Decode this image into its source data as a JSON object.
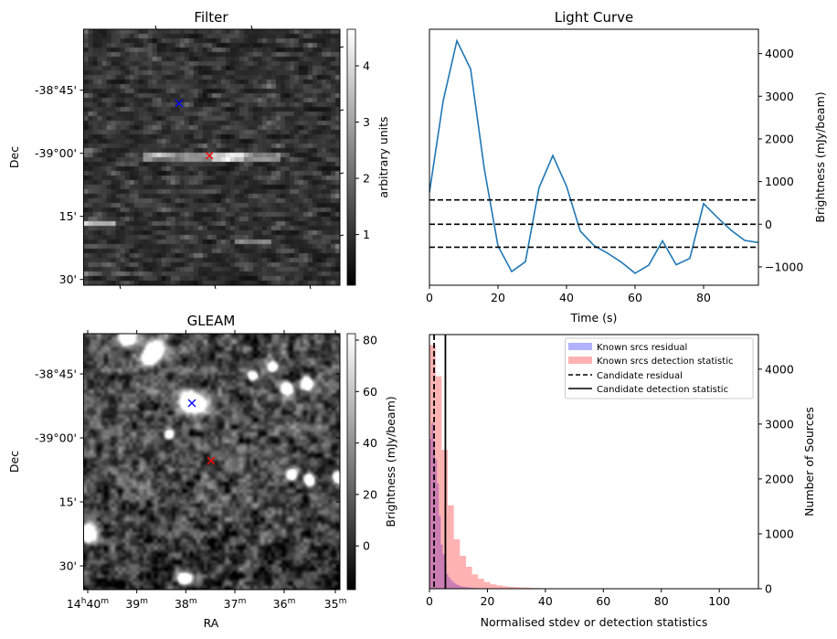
{
  "chart_data": [
    {
      "type": "heatmap",
      "title": "Filter",
      "ylabel": "Dec",
      "y_tick_labels": [
        "-38°45'",
        "-39°00'",
        "15'",
        "30'"
      ],
      "colorbar": {
        "label": "arbitrary units",
        "range": [
          0.1,
          4.65
        ],
        "tick_values": [
          1,
          2,
          3,
          4
        ],
        "tick_labels": [
          "1",
          "2",
          "3",
          "4"
        ],
        "colormap": "gray"
      },
      "markers": [
        {
          "name": "known source",
          "symbol": "x",
          "color": "#0000ff"
        },
        {
          "name": "candidate",
          "symbol": "x",
          "color": "#ff0000"
        }
      ]
    },
    {
      "type": "line",
      "title": "Light Curve",
      "xlabel": "Time (s)",
      "ylabel": "Brightness (mJy/beam)",
      "xlim": [
        0,
        96
      ],
      "ylim": [
        -1430,
        4570
      ],
      "x_ticks": [
        0,
        20,
        40,
        60,
        80
      ],
      "x_tick_labels": [
        "0",
        "20",
        "40",
        "60",
        "80"
      ],
      "y_ticks": [
        -1000,
        0,
        1000,
        2000,
        3000,
        4000
      ],
      "y_tick_labels": [
        "−1000",
        "0",
        "1000",
        "2000",
        "3000",
        "4000"
      ],
      "series": [
        {
          "name": "light curve",
          "color": "#1f77b4",
          "x": [
            0,
            4,
            8,
            12,
            16,
            20,
            24,
            28,
            32,
            36,
            40,
            44,
            48,
            52,
            56,
            60,
            64,
            68,
            72,
            76,
            80,
            84,
            88,
            92,
            96
          ],
          "values": [
            750,
            2890,
            4300,
            3640,
            1300,
            -510,
            -1110,
            -880,
            860,
            1610,
            890,
            -160,
            -500,
            -680,
            -890,
            -1150,
            -960,
            -390,
            -950,
            -800,
            480,
            160,
            -140,
            -380,
            -430
          ]
        }
      ],
      "hlines": [
        570,
        0,
        -540
      ]
    },
    {
      "type": "heatmap",
      "title": "GLEAM",
      "xlabel": "RA",
      "ylabel": "Dec",
      "x_tick_labels": [
        {
          "prefix": "14",
          "prefix_unit": "h",
          "value": "40",
          "unit": "m"
        },
        {
          "prefix": "",
          "prefix_unit": "",
          "value": "39",
          "unit": "m"
        },
        {
          "prefix": "",
          "prefix_unit": "",
          "value": "38",
          "unit": "m"
        },
        {
          "prefix": "",
          "prefix_unit": "",
          "value": "37",
          "unit": "m"
        },
        {
          "prefix": "",
          "prefix_unit": "",
          "value": "36",
          "unit": "m"
        },
        {
          "prefix": "",
          "prefix_unit": "",
          "value": "35",
          "unit": "m"
        }
      ],
      "y_tick_labels": [
        "-38°45'",
        "-39°00'",
        "15'",
        "30'"
      ],
      "colorbar": {
        "label": "Brightness (mJy/beam)",
        "range": [
          -17,
          82.5
        ],
        "tick_values": [
          0,
          20,
          40,
          60,
          80
        ],
        "tick_labels": [
          "0",
          "20",
          "40",
          "60",
          "80"
        ],
        "colormap": "gray"
      },
      "markers": [
        {
          "name": "known source",
          "symbol": "x",
          "color": "#0000ff"
        },
        {
          "name": "candidate",
          "symbol": "x",
          "color": "#ff0000"
        }
      ]
    },
    {
      "type": "bar",
      "subtype": "histogram",
      "xlabel": "Normalised stdev or detection statistics",
      "ylabel": "Number of Sources",
      "xlim": [
        0,
        113.5
      ],
      "ylim": [
        0,
        4630
      ],
      "x_ticks": [
        0,
        20,
        40,
        60,
        80,
        100
      ],
      "x_tick_labels": [
        "0",
        "20",
        "40",
        "60",
        "80",
        "100"
      ],
      "y_ticks": [
        0,
        1000,
        2000,
        3000,
        4000
      ],
      "y_tick_labels": [
        "0",
        "1000",
        "2000",
        "3000",
        "4000"
      ],
      "legend_position": "top-right",
      "series": [
        {
          "name": "Known srcs residual",
          "color": "#0000ff",
          "alpha": 0.3,
          "bin_start": 0,
          "bin_width": 0.65,
          "values": [
            2730,
            3020,
            2690,
            2360,
            1920,
            1330,
            800,
            630,
            420,
            270,
            210,
            160,
            130,
            100,
            80,
            65,
            50,
            40,
            35,
            30,
            26,
            22,
            19,
            16,
            14,
            12,
            10,
            9,
            8,
            7,
            6,
            6,
            5,
            5,
            4,
            4,
            3,
            3,
            3,
            2
          ]
        },
        {
          "name": "Known srcs detection statistic",
          "color": "#ff0000",
          "alpha": 0.3,
          "bin_start": 0,
          "bin_width": 2.1,
          "values": [
            4440,
            3870,
            2530,
            1520,
            900,
            600,
            400,
            260,
            180,
            120,
            80,
            60,
            45,
            35,
            28,
            22,
            18,
            14,
            11,
            9,
            8,
            7,
            6,
            6,
            5,
            5,
            5,
            4,
            4,
            4,
            0,
            0,
            0,
            5,
            5,
            0,
            0,
            0,
            5,
            5,
            0,
            5,
            0,
            0,
            0,
            0,
            0,
            0,
            0,
            0,
            5
          ]
        }
      ],
      "vlines": [
        {
          "name": "Candidate residual",
          "x": 1.6,
          "style": "dashed",
          "color": "#000000"
        },
        {
          "name": "Candidate detection statistic",
          "x": 5.5,
          "style": "solid",
          "color": "#000000"
        }
      ]
    }
  ]
}
